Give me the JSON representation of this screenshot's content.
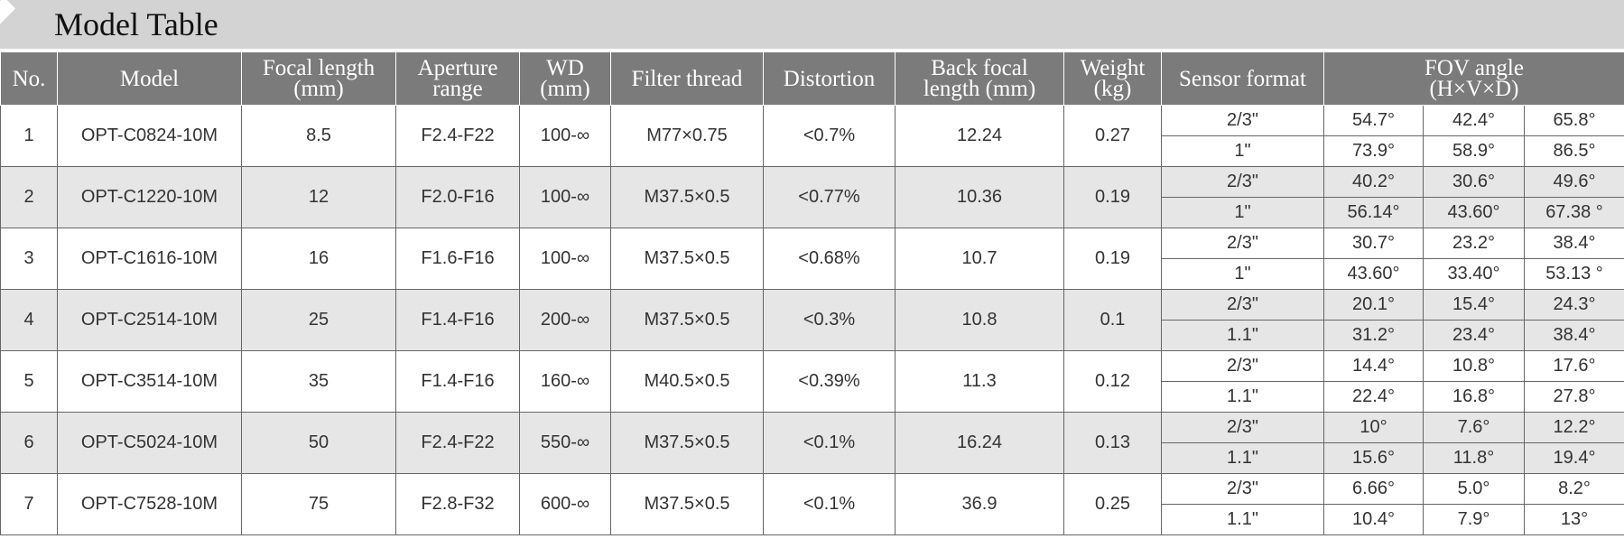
{
  "header": {
    "title": "Model Table"
  },
  "table": {
    "headers": [
      [
        "No."
      ],
      [
        "Model"
      ],
      [
        "Focal length",
        "(mm)"
      ],
      [
        "Aperture",
        "range"
      ],
      [
        "WD",
        "(mm)"
      ],
      [
        "Filter thread"
      ],
      [
        "Distortion"
      ],
      [
        "Back focal",
        "length (mm)"
      ],
      [
        "Weight",
        "(kg)"
      ],
      [
        "Sensor format"
      ],
      [
        "FOV angle",
        "(H×V×D)"
      ]
    ],
    "rows": [
      {
        "no": "1",
        "model": "OPT-C0824-10M",
        "focal": "8.5",
        "aperture": "F2.4-F22",
        "wd": "100-∞",
        "filter": "M77×0.75",
        "distortion": "<0.7%",
        "bfl": "12.24",
        "weight": "0.27",
        "sensors": [
          [
            "2/3\"",
            "54.7°",
            "42.4°",
            "65.8°"
          ],
          [
            "1\"",
            "73.9°",
            "58.9°",
            "86.5°"
          ]
        ]
      },
      {
        "no": "2",
        "model": "OPT-C1220-10M",
        "focal": "12",
        "aperture": "F2.0-F16",
        "wd": "100-∞",
        "filter": "M37.5×0.5",
        "distortion": "<0.77%",
        "bfl": "10.36",
        "weight": "0.19",
        "sensors": [
          [
            "2/3\"",
            "40.2°",
            "30.6°",
            "49.6°"
          ],
          [
            "1\"",
            "56.14°",
            "43.60°",
            "67.38 °"
          ]
        ]
      },
      {
        "no": "3",
        "model": "OPT-C1616-10M",
        "focal": "16",
        "aperture": "F1.6-F16",
        "wd": "100-∞",
        "filter": "M37.5×0.5",
        "distortion": "<0.68%",
        "bfl": "10.7",
        "weight": "0.19",
        "sensors": [
          [
            "2/3\"",
            "30.7°",
            "23.2°",
            "38.4°"
          ],
          [
            "1\"",
            "43.60°",
            "33.40°",
            "53.13 °"
          ]
        ]
      },
      {
        "no": "4",
        "model": "OPT-C2514-10M",
        "focal": "25",
        "aperture": "F1.4-F16",
        "wd": "200-∞",
        "filter": "M37.5×0.5",
        "distortion": "<0.3%",
        "bfl": "10.8",
        "weight": "0.1",
        "sensors": [
          [
            "2/3\"",
            "20.1°",
            "15.4°",
            "24.3°"
          ],
          [
            "1.1\"",
            "31.2°",
            "23.4°",
            "38.4°"
          ]
        ]
      },
      {
        "no": "5",
        "model": "OPT-C3514-10M",
        "focal": "35",
        "aperture": "F1.4-F16",
        "wd": "160-∞",
        "filter": "M40.5×0.5",
        "distortion": "<0.39%",
        "bfl": "11.3",
        "weight": "0.12",
        "sensors": [
          [
            "2/3\"",
            "14.4°",
            "10.8°",
            "17.6°"
          ],
          [
            "1.1\"",
            "22.4°",
            "16.8°",
            "27.8°"
          ]
        ]
      },
      {
        "no": "6",
        "model": "OPT-C5024-10M",
        "focal": "50",
        "aperture": "F2.4-F22",
        "wd": "550-∞",
        "filter": "M37.5×0.5",
        "distortion": "<0.1%",
        "bfl": "16.24",
        "weight": "0.13",
        "sensors": [
          [
            "2/3\"",
            "10°",
            "7.6°",
            "12.2°"
          ],
          [
            "1.1\"",
            "15.6°",
            "11.8°",
            "19.4°"
          ]
        ]
      },
      {
        "no": "7",
        "model": "OPT-C7528-10M",
        "focal": "75",
        "aperture": "F2.8-F32",
        "wd": "600-∞",
        "filter": "M37.5×0.5",
        "distortion": "<0.1%",
        "bfl": "36.9",
        "weight": "0.25",
        "sensors": [
          [
            "2/3\"",
            "6.66°",
            "5.0°",
            "8.2°"
          ],
          [
            "1.1\"",
            "10.4°",
            "7.9°",
            "13°"
          ]
        ]
      }
    ]
  }
}
